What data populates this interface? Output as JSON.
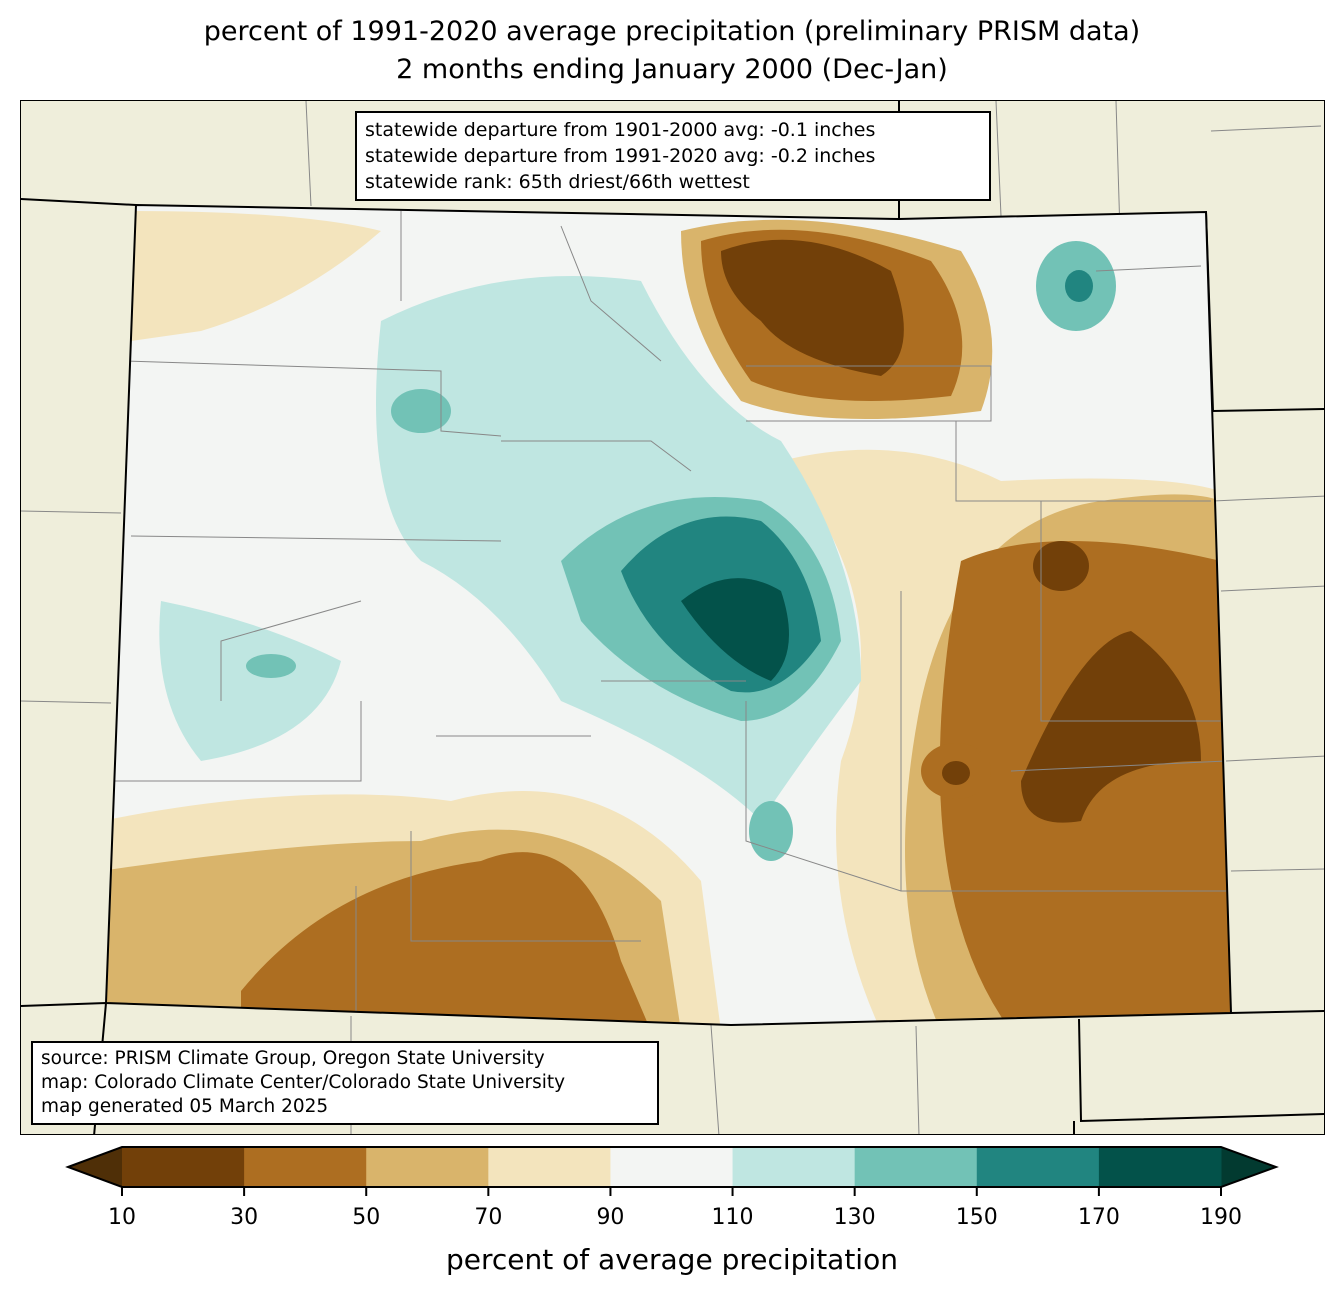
{
  "title": {
    "line1": "percent of 1991-2020 average precipitation (preliminary PRISM data)",
    "line2": "2 months ending January 2000 (Dec-Jan)"
  },
  "stats": {
    "line1": "statewide departure from 1901-2000 avg: -0.1 inches",
    "line2": "statewide departure from 1991-2020 avg: -0.2 inches",
    "line3": "statewide rank: 65th driest/66th wettest"
  },
  "source": {
    "line1": "source: PRISM Climate Group, Oregon State University",
    "line2": "map: Colorado Climate Center/Colorado State University",
    "line3": "map generated 05 March 2025"
  },
  "colorbar": {
    "label": "percent of average precipitation",
    "ticks": [
      "10",
      "30",
      "50",
      "70",
      "90",
      "110",
      "130",
      "150",
      "170",
      "190"
    ],
    "colors": [
      "#724009",
      "#ad6e21",
      "#d9b46b",
      "#f3e4bd",
      "#f3f5f3",
      "#bfe6e1",
      "#72c2b6",
      "#218580",
      "#03524a"
    ],
    "under_color": "#4f2f07",
    "over_color": "#023a30"
  }
}
